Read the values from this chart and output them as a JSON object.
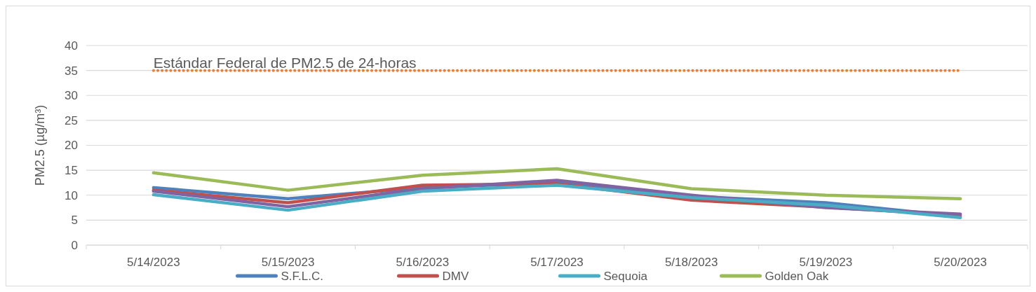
{
  "chart_data": {
    "type": "line",
    "ylabel": "PM2.5 (µg/m³)",
    "categories": [
      "5/14/2023",
      "5/15/2023",
      "5/16/2023",
      "5/17/2023",
      "5/18/2023",
      "5/19/2023",
      "5/20/2023"
    ],
    "series": [
      {
        "name": "S.F.L.C.",
        "color": "#4f81bd",
        "values": [
          11.5,
          9.3,
          11.5,
          12.5,
          9.8,
          8.5,
          5.7
        ]
      },
      {
        "name": "DMV",
        "color": "#c0504d",
        "values": [
          11.0,
          8.5,
          12.0,
          12.3,
          9.0,
          7.6,
          6.0
        ]
      },
      {
        "color": "#8064a2",
        "values": [
          10.8,
          7.7,
          11.3,
          13.0,
          10.0,
          7.5,
          6.2
        ]
      },
      {
        "name": "Sequoia",
        "color": "#4bacc6",
        "values": [
          10.1,
          7.0,
          10.8,
          12.0,
          9.5,
          8.0,
          5.5
        ]
      },
      {
        "name": "Golden Oak",
        "color": "#9bbb59",
        "values": [
          14.5,
          11.0,
          14.0,
          15.3,
          11.3,
          10.0,
          9.3
        ]
      }
    ],
    "ylim": [
      0,
      40
    ],
    "yticks": [
      0,
      5,
      10,
      15,
      20,
      25,
      30,
      35,
      40
    ],
    "grid": "y",
    "legend": "bottom",
    "ref_lines": [
      {
        "axis": "y",
        "value": 35,
        "label": "Estándar Federal de PM2.5 de 24-horas",
        "color": "#ed7d31",
        "line_style": "dotted"
      }
    ]
  }
}
